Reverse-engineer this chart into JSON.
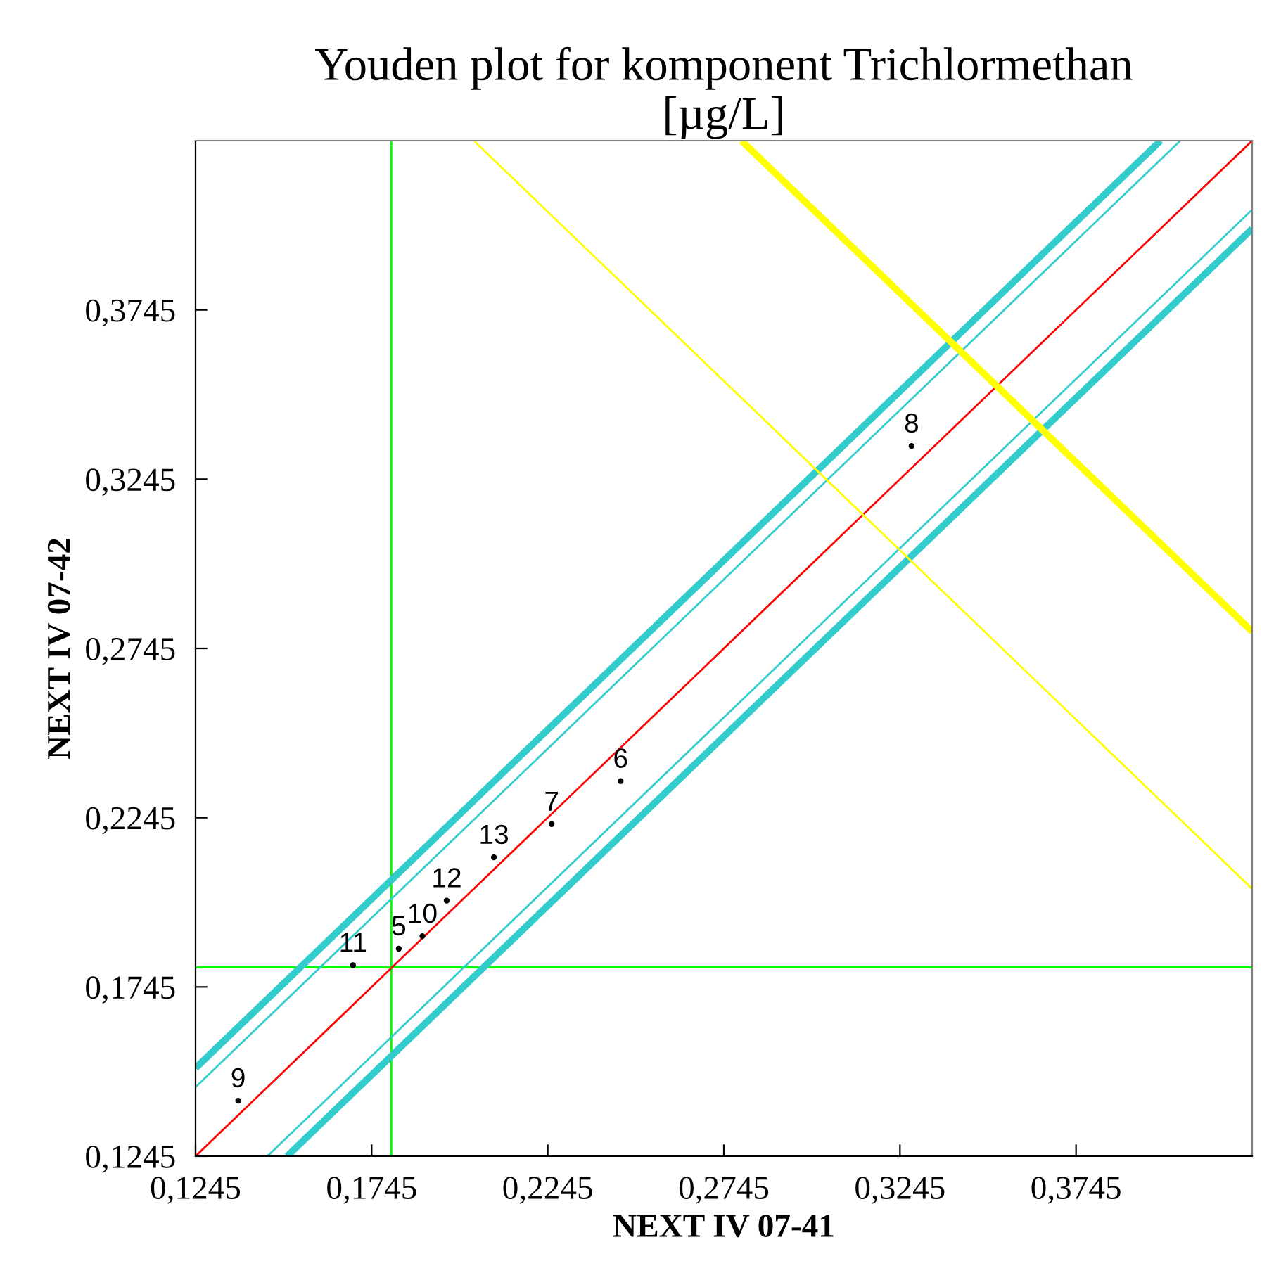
{
  "chart_data": {
    "type": "line",
    "title": "Youden plot for komponent Trichlormethan\n[µg/L]",
    "xlabel": "NEXT IV 07-41",
    "ylabel": "NEXT IV 07-42",
    "xlim": [
      0.1245,
      0.4245
    ],
    "ylim": [
      0.1245,
      0.4245
    ],
    "xticks": [
      {
        "value": 0.1245,
        "label": "0,1245"
      },
      {
        "value": 0.1745,
        "label": "0,1745"
      },
      {
        "value": 0.2245,
        "label": "0,2245"
      },
      {
        "value": 0.2745,
        "label": "0,2745"
      },
      {
        "value": 0.3245,
        "label": "0,3245"
      },
      {
        "value": 0.3745,
        "label": "0,3745"
      }
    ],
    "yticks": [
      {
        "value": 0.1245,
        "label": "0,1245"
      },
      {
        "value": 0.1745,
        "label": "0,1745"
      },
      {
        "value": 0.2245,
        "label": "0,2245"
      },
      {
        "value": 0.2745,
        "label": "0,2745"
      },
      {
        "value": 0.3245,
        "label": "0,3245"
      },
      {
        "value": 0.3745,
        "label": "0,3745"
      }
    ],
    "grid": false,
    "ref_lines": [
      {
        "axis": "x",
        "value": 0.1801,
        "color": "#00ff00"
      },
      {
        "axis": "y",
        "value": 0.1803,
        "color": "#00ff00"
      }
    ],
    "series": [
      {
        "color": "#ff0000",
        "x": [
          0.1245,
          0.4245
        ],
        "values": [
          0.1245,
          0.4245
        ]
      },
      {
        "color": "#33cccc",
        "x": [
          0.1245,
          0.3985
        ],
        "values": [
          0.1505,
          0.4245
        ]
      },
      {
        "color": "#33cccc",
        "x": [
          0.1245,
          0.4041
        ],
        "values": [
          0.1449,
          0.4245
        ]
      },
      {
        "color": "#33cccc",
        "x": [
          0.1449,
          0.4245
        ],
        "values": [
          0.1245,
          0.4041
        ]
      },
      {
        "color": "#33cccc",
        "x": [
          0.1505,
          0.4245
        ],
        "values": [
          0.1245,
          0.3985
        ]
      },
      {
        "color": "#ffff00",
        "x": [
          0.2035,
          0.4245
        ],
        "values": [
          0.4245,
          0.2035
        ]
      },
      {
        "color": "#ffff00",
        "x": [
          0.2795,
          0.4245
        ],
        "values": [
          0.4245,
          0.2795
        ]
      },
      {
        "type": "scatter",
        "marker": "circle",
        "color": "#000000",
        "x": [
          0.1366,
          0.1692,
          0.1822,
          0.1889,
          0.1958,
          0.2092,
          0.2256,
          0.2452,
          0.3278
        ],
        "values": [
          0.1409,
          0.1809,
          0.1858,
          0.1895,
          0.2,
          0.2128,
          0.2226,
          0.2353,
          0.3343
        ]
      }
    ],
    "annotations": [
      {
        "text": "9",
        "x": 0.1366,
        "y": 0.1409
      },
      {
        "text": "11",
        "x": 0.1692,
        "y": 0.1809
      },
      {
        "text": "5",
        "x": 0.1822,
        "y": 0.1858
      },
      {
        "text": "10",
        "x": 0.1889,
        "y": 0.1895
      },
      {
        "text": "12",
        "x": 0.1958,
        "y": 0.2
      },
      {
        "text": "13",
        "x": 0.2092,
        "y": 0.2128
      },
      {
        "text": "7",
        "x": 0.2256,
        "y": 0.2226
      },
      {
        "text": "6",
        "x": 0.2452,
        "y": 0.2353
      },
      {
        "text": "8",
        "x": 0.3278,
        "y": 0.3343
      }
    ]
  }
}
